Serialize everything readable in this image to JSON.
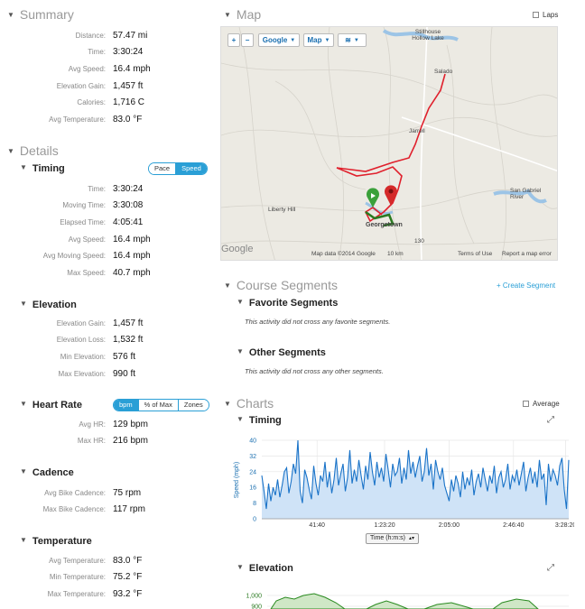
{
  "summary": {
    "title": "Summary",
    "rows": [
      {
        "label": "Distance:",
        "value": "57.47 mi"
      },
      {
        "label": "Time:",
        "value": "3:30:24"
      },
      {
        "label": "Avg Speed:",
        "value": "16.4 mph"
      },
      {
        "label": "Elevation Gain:",
        "value": "1,457 ft"
      },
      {
        "label": "Calories:",
        "value": "1,716 C"
      },
      {
        "label": "Avg Temperature:",
        "value": "83.0 °F"
      }
    ]
  },
  "details": {
    "title": "Details",
    "timing": {
      "title": "Timing",
      "toggle": [
        "Pace",
        "Speed"
      ],
      "rows": [
        {
          "label": "Time:",
          "value": "3:30:24"
        },
        {
          "label": "Moving Time:",
          "value": "3:30:08"
        },
        {
          "label": "Elapsed Time:",
          "value": "4:05:41"
        },
        {
          "label": "Avg Speed:",
          "value": "16.4 mph"
        },
        {
          "label": "Avg Moving Speed:",
          "value": "16.4 mph"
        },
        {
          "label": "Max Speed:",
          "value": "40.7 mph"
        }
      ]
    },
    "elevation": {
      "title": "Elevation",
      "rows": [
        {
          "label": "Elevation Gain:",
          "value": "1,457 ft"
        },
        {
          "label": "Elevation Loss:",
          "value": "1,532 ft"
        },
        {
          "label": "Min Elevation:",
          "value": "576 ft"
        },
        {
          "label": "Max Elevation:",
          "value": "990 ft"
        }
      ]
    },
    "heart_rate": {
      "title": "Heart Rate",
      "toggle": [
        "bpm",
        "% of Max",
        "Zones"
      ],
      "rows": [
        {
          "label": "Avg HR:",
          "value": "129 bpm"
        },
        {
          "label": "Max HR:",
          "value": "216 bpm"
        }
      ]
    },
    "cadence": {
      "title": "Cadence",
      "rows": [
        {
          "label": "Avg Bike Cadence:",
          "value": "75 rpm"
        },
        {
          "label": "Max Bike Cadence:",
          "value": "117 rpm"
        }
      ]
    },
    "temperature": {
      "title": "Temperature",
      "rows": [
        {
          "label": "Avg Temperature:",
          "value": "83.0 °F"
        },
        {
          "label": "Min Temperature:",
          "value": "75.2 °F"
        },
        {
          "label": "Max Temperature:",
          "value": "93.2 °F"
        }
      ]
    }
  },
  "map": {
    "title": "Map",
    "laps_label": "Laps",
    "zoom_in": "+",
    "zoom_out": "−",
    "provider_label": "Google",
    "type_label": "Map",
    "places": {
      "stillhouse": "Stillhouse Hollow Lake",
      "salado": "Salado",
      "jarrell": "Jarrell",
      "liberty_hill": "Liberty Hill",
      "georgetown": "Georgetown",
      "san_gabriel": "San Gabriel River",
      "hwy": "130"
    },
    "footer": {
      "logo": "Google",
      "data": "Map data ©2014 Google",
      "scale": "10 km",
      "terms": "Terms of Use",
      "report": "Report a map error"
    }
  },
  "course_segments": {
    "title": "Course Segments",
    "create_label": "+ Create Segment",
    "favorite": {
      "title": "Favorite Segments",
      "message": "This activity did not cross any favorite segments."
    },
    "other": {
      "title": "Other Segments",
      "message": "This activity did not cross any other segments."
    }
  },
  "charts": {
    "title": "Charts",
    "average_label": "Average",
    "timing": {
      "title": "Timing",
      "x_select": "Time (h:m:s)"
    },
    "elevation": {
      "title": "Elevation"
    }
  },
  "colors": {
    "accent": "#2a9fd6",
    "speed_line": "#1a73c8",
    "speed_fill": "#cfe3f7",
    "route": "#e0202c"
  },
  "chart_data": [
    {
      "type": "area",
      "title": "Timing",
      "xlabel": "Time (h:m:s)",
      "ylabel": "Speed (mph)",
      "ylim": [
        0,
        40
      ],
      "y_ticks": [
        "0",
        "8",
        "16",
        "24",
        "32",
        "40"
      ],
      "x_ticks": [
        "41:40",
        "1:23:20",
        "2:05:00",
        "2:46:40",
        "3:28:20"
      ],
      "series": [
        {
          "values": [
            22,
            14,
            5,
            18,
            9,
            16,
            12,
            20,
            11,
            17,
            24,
            26,
            13,
            19,
            28,
            23,
            40,
            14,
            8,
            25,
            21,
            15,
            10,
            27,
            18,
            12,
            22,
            19,
            29,
            16,
            24,
            13,
            20,
            31,
            17,
            23,
            28,
            14,
            21,
            35,
            18,
            25,
            19,
            30,
            22,
            15,
            27,
            20,
            34,
            24,
            17,
            29,
            21,
            26,
            19,
            33,
            25,
            16,
            28,
            22,
            24,
            31,
            18,
            26,
            20,
            35,
            23,
            29,
            21,
            27,
            32,
            19,
            24,
            36,
            22,
            28,
            15,
            30,
            24,
            20,
            26,
            17,
            13,
            9,
            20,
            14,
            22,
            18,
            11,
            24,
            15,
            21,
            17,
            25,
            12,
            19,
            23,
            16,
            26,
            20,
            14,
            22,
            18,
            27,
            13,
            21,
            24,
            16,
            20,
            28,
            15,
            22,
            19,
            25,
            17,
            23,
            29,
            14,
            21,
            26,
            18,
            24,
            16,
            30,
            20,
            23,
            7,
            28,
            19,
            25,
            22,
            17,
            27,
            31,
            15,
            5,
            30
          ]
        }
      ]
    },
    {
      "type": "area",
      "title": "Elevation",
      "ylim": [
        900,
        1000
      ],
      "y_ticks": [
        "1,000",
        "900"
      ]
    }
  ]
}
